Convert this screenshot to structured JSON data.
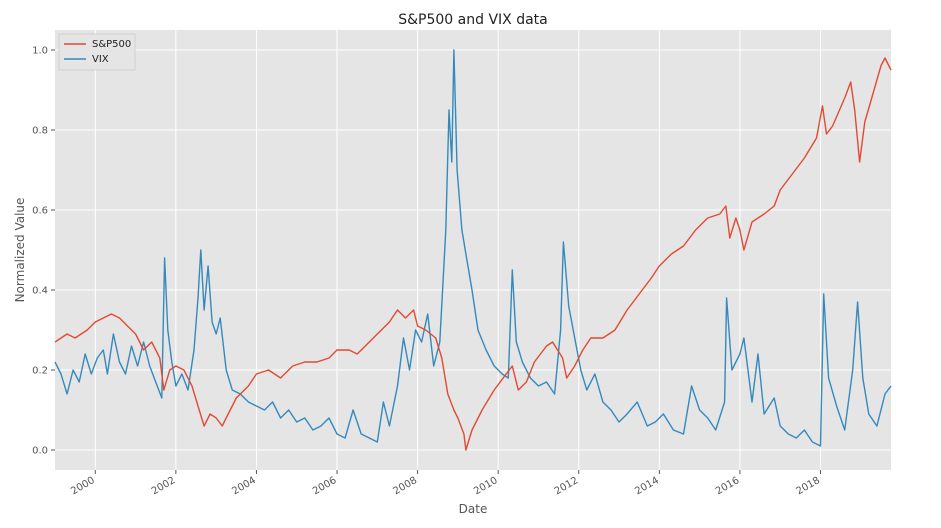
{
  "chart_data": {
    "type": "line",
    "title": "S&P500 and VIX data",
    "xlabel": "Date",
    "ylabel": "Normalized Value",
    "xlim": [
      1999.0,
      2019.75
    ],
    "ylim": [
      -0.05,
      1.05
    ],
    "xticks": [
      "2000",
      "2002",
      "2004",
      "2006",
      "2008",
      "2010",
      "2012",
      "2014",
      "2016",
      "2018"
    ],
    "yticks": [
      "0.0",
      "0.2",
      "0.4",
      "0.6",
      "0.8",
      "1.0"
    ],
    "grid": true,
    "legend_position": "top-left",
    "series": [
      {
        "name": "S&P500",
        "color": "#e24a33",
        "points": [
          [
            1999.0,
            0.27
          ],
          [
            1999.3,
            0.29
          ],
          [
            1999.5,
            0.28
          ],
          [
            1999.8,
            0.3
          ],
          [
            2000.0,
            0.32
          ],
          [
            2000.2,
            0.33
          ],
          [
            2000.4,
            0.34
          ],
          [
            2000.6,
            0.33
          ],
          [
            2000.8,
            0.31
          ],
          [
            2001.0,
            0.29
          ],
          [
            2001.2,
            0.25
          ],
          [
            2001.4,
            0.27
          ],
          [
            2001.6,
            0.23
          ],
          [
            2001.7,
            0.15
          ],
          [
            2001.85,
            0.2
          ],
          [
            2002.0,
            0.21
          ],
          [
            2002.2,
            0.2
          ],
          [
            2002.4,
            0.16
          ],
          [
            2002.55,
            0.11
          ],
          [
            2002.7,
            0.06
          ],
          [
            2002.85,
            0.09
          ],
          [
            2003.0,
            0.08
          ],
          [
            2003.15,
            0.06
          ],
          [
            2003.3,
            0.09
          ],
          [
            2003.5,
            0.13
          ],
          [
            2003.8,
            0.16
          ],
          [
            2004.0,
            0.19
          ],
          [
            2004.3,
            0.2
          ],
          [
            2004.6,
            0.18
          ],
          [
            2004.9,
            0.21
          ],
          [
            2005.2,
            0.22
          ],
          [
            2005.5,
            0.22
          ],
          [
            2005.8,
            0.23
          ],
          [
            2006.0,
            0.25
          ],
          [
            2006.3,
            0.25
          ],
          [
            2006.5,
            0.24
          ],
          [
            2006.8,
            0.27
          ],
          [
            2007.0,
            0.29
          ],
          [
            2007.3,
            0.32
          ],
          [
            2007.5,
            0.35
          ],
          [
            2007.7,
            0.33
          ],
          [
            2007.9,
            0.35
          ],
          [
            2008.0,
            0.31
          ],
          [
            2008.2,
            0.3
          ],
          [
            2008.45,
            0.28
          ],
          [
            2008.6,
            0.23
          ],
          [
            2008.75,
            0.14
          ],
          [
            2008.9,
            0.1
          ],
          [
            2009.0,
            0.08
          ],
          [
            2009.15,
            0.04
          ],
          [
            2009.2,
            0.0
          ],
          [
            2009.35,
            0.05
          ],
          [
            2009.6,
            0.1
          ],
          [
            2009.9,
            0.15
          ],
          [
            2010.2,
            0.19
          ],
          [
            2010.35,
            0.21
          ],
          [
            2010.5,
            0.15
          ],
          [
            2010.7,
            0.17
          ],
          [
            2010.9,
            0.22
          ],
          [
            2011.2,
            0.26
          ],
          [
            2011.35,
            0.27
          ],
          [
            2011.6,
            0.23
          ],
          [
            2011.7,
            0.18
          ],
          [
            2011.9,
            0.21
          ],
          [
            2012.1,
            0.25
          ],
          [
            2012.3,
            0.28
          ],
          [
            2012.6,
            0.28
          ],
          [
            2012.9,
            0.3
          ],
          [
            2013.2,
            0.35
          ],
          [
            2013.5,
            0.39
          ],
          [
            2013.8,
            0.43
          ],
          [
            2014.0,
            0.46
          ],
          [
            2014.3,
            0.49
          ],
          [
            2014.6,
            0.51
          ],
          [
            2014.9,
            0.55
          ],
          [
            2015.2,
            0.58
          ],
          [
            2015.5,
            0.59
          ],
          [
            2015.65,
            0.61
          ],
          [
            2015.75,
            0.53
          ],
          [
            2015.9,
            0.58
          ],
          [
            2016.0,
            0.55
          ],
          [
            2016.1,
            0.5
          ],
          [
            2016.3,
            0.57
          ],
          [
            2016.6,
            0.59
          ],
          [
            2016.85,
            0.61
          ],
          [
            2017.0,
            0.65
          ],
          [
            2017.3,
            0.69
          ],
          [
            2017.6,
            0.73
          ],
          [
            2017.9,
            0.78
          ],
          [
            2018.05,
            0.86
          ],
          [
            2018.15,
            0.79
          ],
          [
            2018.3,
            0.81
          ],
          [
            2018.6,
            0.88
          ],
          [
            2018.75,
            0.92
          ],
          [
            2018.85,
            0.85
          ],
          [
            2018.97,
            0.72
          ],
          [
            2019.1,
            0.82
          ],
          [
            2019.3,
            0.89
          ],
          [
            2019.5,
            0.96
          ],
          [
            2019.6,
            0.98
          ],
          [
            2019.75,
            0.95
          ]
        ]
      },
      {
        "name": "VIX",
        "color": "#348abd",
        "points": [
          [
            1999.0,
            0.22
          ],
          [
            1999.15,
            0.19
          ],
          [
            1999.3,
            0.14
          ],
          [
            1999.45,
            0.2
          ],
          [
            1999.6,
            0.17
          ],
          [
            1999.75,
            0.24
          ],
          [
            1999.9,
            0.19
          ],
          [
            2000.05,
            0.23
          ],
          [
            2000.2,
            0.25
          ],
          [
            2000.3,
            0.19
          ],
          [
            2000.45,
            0.29
          ],
          [
            2000.6,
            0.22
          ],
          [
            2000.75,
            0.19
          ],
          [
            2000.9,
            0.26
          ],
          [
            2001.05,
            0.21
          ],
          [
            2001.2,
            0.27
          ],
          [
            2001.35,
            0.21
          ],
          [
            2001.5,
            0.17
          ],
          [
            2001.65,
            0.13
          ],
          [
            2001.72,
            0.48
          ],
          [
            2001.8,
            0.3
          ],
          [
            2001.9,
            0.22
          ],
          [
            2002.0,
            0.16
          ],
          [
            2002.15,
            0.19
          ],
          [
            2002.3,
            0.15
          ],
          [
            2002.45,
            0.25
          ],
          [
            2002.55,
            0.38
          ],
          [
            2002.62,
            0.5
          ],
          [
            2002.7,
            0.35
          ],
          [
            2002.8,
            0.46
          ],
          [
            2002.9,
            0.32
          ],
          [
            2003.0,
            0.29
          ],
          [
            2003.1,
            0.33
          ],
          [
            2003.25,
            0.2
          ],
          [
            2003.4,
            0.15
          ],
          [
            2003.6,
            0.14
          ],
          [
            2003.8,
            0.12
          ],
          [
            2004.0,
            0.11
          ],
          [
            2004.2,
            0.1
          ],
          [
            2004.4,
            0.12
          ],
          [
            2004.6,
            0.08
          ],
          [
            2004.8,
            0.1
          ],
          [
            2005.0,
            0.07
          ],
          [
            2005.2,
            0.08
          ],
          [
            2005.4,
            0.05
          ],
          [
            2005.6,
            0.06
          ],
          [
            2005.8,
            0.08
          ],
          [
            2006.0,
            0.04
          ],
          [
            2006.2,
            0.03
          ],
          [
            2006.4,
            0.1
          ],
          [
            2006.6,
            0.04
          ],
          [
            2006.8,
            0.03
          ],
          [
            2007.0,
            0.02
          ],
          [
            2007.15,
            0.12
          ],
          [
            2007.3,
            0.06
          ],
          [
            2007.5,
            0.16
          ],
          [
            2007.65,
            0.28
          ],
          [
            2007.8,
            0.2
          ],
          [
            2007.95,
            0.3
          ],
          [
            2008.1,
            0.27
          ],
          [
            2008.25,
            0.34
          ],
          [
            2008.4,
            0.21
          ],
          [
            2008.55,
            0.27
          ],
          [
            2008.7,
            0.55
          ],
          [
            2008.78,
            0.85
          ],
          [
            2008.85,
            0.72
          ],
          [
            2008.9,
            1.0
          ],
          [
            2008.98,
            0.7
          ],
          [
            2009.1,
            0.55
          ],
          [
            2009.2,
            0.49
          ],
          [
            2009.35,
            0.4
          ],
          [
            2009.5,
            0.3
          ],
          [
            2009.7,
            0.25
          ],
          [
            2009.9,
            0.21
          ],
          [
            2010.1,
            0.19
          ],
          [
            2010.25,
            0.18
          ],
          [
            2010.35,
            0.45
          ],
          [
            2010.45,
            0.27
          ],
          [
            2010.6,
            0.22
          ],
          [
            2010.8,
            0.18
          ],
          [
            2011.0,
            0.16
          ],
          [
            2011.2,
            0.17
          ],
          [
            2011.4,
            0.14
          ],
          [
            2011.55,
            0.3
          ],
          [
            2011.62,
            0.52
          ],
          [
            2011.75,
            0.36
          ],
          [
            2011.9,
            0.28
          ],
          [
            2012.05,
            0.2
          ],
          [
            2012.2,
            0.15
          ],
          [
            2012.4,
            0.19
          ],
          [
            2012.6,
            0.12
          ],
          [
            2012.8,
            0.1
          ],
          [
            2013.0,
            0.07
          ],
          [
            2013.2,
            0.09
          ],
          [
            2013.45,
            0.12
          ],
          [
            2013.7,
            0.06
          ],
          [
            2013.9,
            0.07
          ],
          [
            2014.1,
            0.09
          ],
          [
            2014.35,
            0.05
          ],
          [
            2014.6,
            0.04
          ],
          [
            2014.8,
            0.16
          ],
          [
            2015.0,
            0.1
          ],
          [
            2015.2,
            0.08
          ],
          [
            2015.4,
            0.05
          ],
          [
            2015.62,
            0.12
          ],
          [
            2015.67,
            0.38
          ],
          [
            2015.8,
            0.2
          ],
          [
            2016.0,
            0.24
          ],
          [
            2016.1,
            0.28
          ],
          [
            2016.3,
            0.12
          ],
          [
            2016.45,
            0.24
          ],
          [
            2016.6,
            0.09
          ],
          [
            2016.85,
            0.13
          ],
          [
            2017.0,
            0.06
          ],
          [
            2017.2,
            0.04
          ],
          [
            2017.4,
            0.03
          ],
          [
            2017.6,
            0.05
          ],
          [
            2017.8,
            0.02
          ],
          [
            2018.0,
            0.01
          ],
          [
            2018.08,
            0.39
          ],
          [
            2018.2,
            0.18
          ],
          [
            2018.4,
            0.11
          ],
          [
            2018.6,
            0.05
          ],
          [
            2018.8,
            0.2
          ],
          [
            2018.92,
            0.37
          ],
          [
            2019.05,
            0.18
          ],
          [
            2019.2,
            0.09
          ],
          [
            2019.4,
            0.06
          ],
          [
            2019.6,
            0.14
          ],
          [
            2019.75,
            0.16
          ]
        ]
      }
    ]
  }
}
